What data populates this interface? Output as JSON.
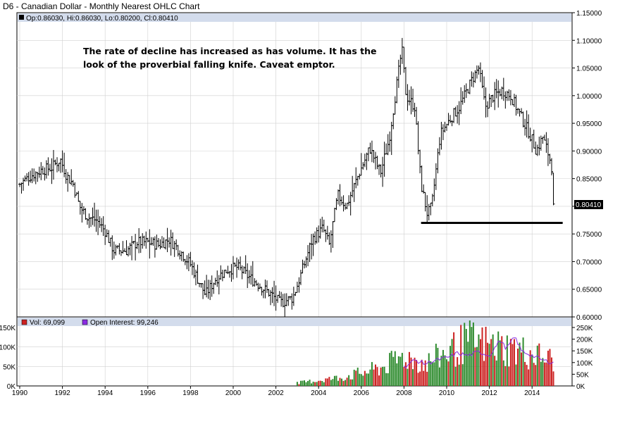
{
  "title": "D6 - Canadian Dollar - Monthly Nearest OHLC Chart",
  "info_bar": "Op:0.86030, Hi:0.86030, Lo:0.80200, Cl:0.80410",
  "annotation": {
    "line1": "The rate of decline has increased as has volume. It has the",
    "line2": "look of the proverbial falling knife.  Caveat emptor."
  },
  "last_price_label": "0.80410",
  "volume_legend": {
    "volume": "Vol: 69,099",
    "open_interest": "Open Interest: 99,246"
  },
  "colors": {
    "background": "#ffffff",
    "header_band": "#d3dcec",
    "grid": "#d0d0d0",
    "bar": "#000000",
    "volume_up": "#2e8b2e",
    "volume_down": "#cc2222",
    "open_interest": "#8a2be2",
    "last_price_box": "#000000"
  },
  "chart_data": [
    {
      "type": "ohlc",
      "x_labels": [
        "1990",
        "1992",
        "1994",
        "1996",
        "1998",
        "2000",
        "2002",
        "2004",
        "2006",
        "2008",
        "2010",
        "2012",
        "2014"
      ],
      "y_labels": [
        "1.15000",
        "1.10000",
        "1.05000",
        "1.00000",
        "0.95000",
        "0.90000",
        "0.85000",
        "0.80000",
        "0.75000",
        "0.70000",
        "0.65000",
        "0.60000"
      ],
      "ylim": [
        0.6,
        1.15
      ],
      "xlim": [
        1990.0,
        2015.5
      ],
      "horizontal_line": {
        "value": 0.77,
        "from": 2008.8,
        "to": 2015.5
      },
      "anchors": [
        {
          "t": 1990.0,
          "c": 0.84
        },
        {
          "t": 1990.5,
          "c": 0.855
        },
        {
          "t": 1991.0,
          "c": 0.865
        },
        {
          "t": 1991.5,
          "c": 0.87
        },
        {
          "t": 1991.9,
          "c": 0.885
        },
        {
          "t": 1992.2,
          "c": 0.855
        },
        {
          "t": 1992.5,
          "c": 0.84
        },
        {
          "t": 1992.8,
          "c": 0.8
        },
        {
          "t": 1993.2,
          "c": 0.78
        },
        {
          "t": 1993.6,
          "c": 0.775
        },
        {
          "t": 1994.0,
          "c": 0.755
        },
        {
          "t": 1994.4,
          "c": 0.72
        },
        {
          "t": 1995.0,
          "c": 0.72
        },
        {
          "t": 1995.5,
          "c": 0.735
        },
        {
          "t": 1996.0,
          "c": 0.735
        },
        {
          "t": 1996.5,
          "c": 0.73
        },
        {
          "t": 1997.0,
          "c": 0.74
        },
        {
          "t": 1997.5,
          "c": 0.72
        },
        {
          "t": 1998.0,
          "c": 0.695
        },
        {
          "t": 1998.7,
          "c": 0.64
        },
        {
          "t": 1999.2,
          "c": 0.67
        },
        {
          "t": 1999.7,
          "c": 0.685
        },
        {
          "t": 2000.2,
          "c": 0.69
        },
        {
          "t": 2000.8,
          "c": 0.67
        },
        {
          "t": 2001.3,
          "c": 0.655
        },
        {
          "t": 2001.8,
          "c": 0.64
        },
        {
          "t": 2002.2,
          "c": 0.625
        },
        {
          "t": 2002.8,
          "c": 0.635
        },
        {
          "t": 2003.2,
          "c": 0.68
        },
        {
          "t": 2003.7,
          "c": 0.74
        },
        {
          "t": 2004.2,
          "c": 0.76
        },
        {
          "t": 2004.5,
          "c": 0.73
        },
        {
          "t": 2004.9,
          "c": 0.82
        },
        {
          "t": 2005.3,
          "c": 0.8
        },
        {
          "t": 2005.9,
          "c": 0.86
        },
        {
          "t": 2006.4,
          "c": 0.905
        },
        {
          "t": 2006.9,
          "c": 0.86
        },
        {
          "t": 2007.3,
          "c": 0.92
        },
        {
          "t": 2007.7,
          "c": 1.03
        },
        {
          "t": 2007.9,
          "c": 1.085
        },
        {
          "t": 2008.1,
          "c": 1.0
        },
        {
          "t": 2008.5,
          "c": 0.98
        },
        {
          "t": 2008.8,
          "c": 0.84
        },
        {
          "t": 2009.1,
          "c": 0.785
        },
        {
          "t": 2009.3,
          "c": 0.8
        },
        {
          "t": 2009.7,
          "c": 0.93
        },
        {
          "t": 2010.2,
          "c": 0.96
        },
        {
          "t": 2010.6,
          "c": 0.98
        },
        {
          "t": 2011.2,
          "c": 1.03
        },
        {
          "t": 2011.5,
          "c": 1.05
        },
        {
          "t": 2011.8,
          "c": 0.98
        },
        {
          "t": 2012.2,
          "c": 1.0
        },
        {
          "t": 2012.6,
          "c": 1.01
        },
        {
          "t": 2013.0,
          "c": 1.0
        },
        {
          "t": 2013.5,
          "c": 0.96
        },
        {
          "t": 2013.9,
          "c": 0.93
        },
        {
          "t": 2014.2,
          "c": 0.9
        },
        {
          "t": 2014.5,
          "c": 0.925
        },
        {
          "t": 2014.8,
          "c": 0.89
        },
        {
          "t": 2015.0,
          "c": 0.86
        }
      ],
      "last_bar": {
        "open": 0.8603,
        "high": 0.8603,
        "low": 0.802,
        "close": 0.8041
      }
    },
    {
      "type": "bar",
      "title": "volume / open interest",
      "left_y_labels": [
        "150K",
        "100K",
        "50K",
        "0K"
      ],
      "right_y_labels": [
        "250K",
        "200K",
        "150K",
        "100K",
        "50K",
        "0K"
      ],
      "ylim_left": [
        0,
        150
      ],
      "ylim_right": [
        0,
        250
      ],
      "volume_anchors": [
        {
          "t": 2003.0,
          "v": 8
        },
        {
          "t": 2004.0,
          "v": 15
        },
        {
          "t": 2005.0,
          "v": 22
        },
        {
          "t": 2006.0,
          "v": 35
        },
        {
          "t": 2007.0,
          "v": 50
        },
        {
          "t": 2008.0,
          "v": 80
        },
        {
          "t": 2009.0,
          "v": 60
        },
        {
          "t": 2010.0,
          "v": 90
        },
        {
          "t": 2011.0,
          "v": 120
        },
        {
          "t": 2012.0,
          "v": 110
        },
        {
          "t": 2013.0,
          "v": 100
        },
        {
          "t": 2014.0,
          "v": 85
        },
        {
          "t": 2015.0,
          "v": 69
        }
      ],
      "oi_anchors": [
        {
          "t": 2008.0,
          "v": 80
        },
        {
          "t": 2008.5,
          "v": 110
        },
        {
          "t": 2009.0,
          "v": 95
        },
        {
          "t": 2009.5,
          "v": 110
        },
        {
          "t": 2010.0,
          "v": 120
        },
        {
          "t": 2010.5,
          "v": 140
        },
        {
          "t": 2011.0,
          "v": 130
        },
        {
          "t": 2011.5,
          "v": 145
        },
        {
          "t": 2012.0,
          "v": 130
        },
        {
          "t": 2012.5,
          "v": 195
        },
        {
          "t": 2012.8,
          "v": 160
        },
        {
          "t": 2013.2,
          "v": 210
        },
        {
          "t": 2013.5,
          "v": 150
        },
        {
          "t": 2014.0,
          "v": 130
        },
        {
          "t": 2014.5,
          "v": 110
        },
        {
          "t": 2015.0,
          "v": 99
        }
      ]
    }
  ]
}
